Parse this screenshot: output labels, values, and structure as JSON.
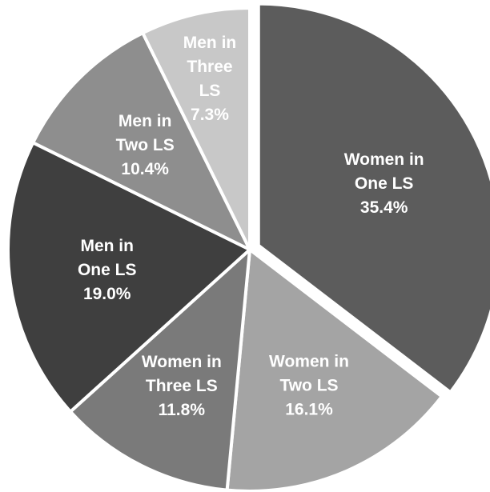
{
  "chart_data": {
    "type": "pie",
    "start_angle_deg": 0,
    "direction": "clockwise",
    "slices": [
      {
        "label_lines": [
          "Women in",
          "One LS",
          "35.4%"
        ],
        "value": 35.4,
        "color": "#5c5c5c",
        "label_color": "#ffffff"
      },
      {
        "label_lines": [
          "Women in",
          "Two LS",
          "16.1%"
        ],
        "value": 16.1,
        "color": "#a4a4a4",
        "label_color": "#000000"
      },
      {
        "label_lines": [
          "Women in",
          "Three LS",
          "11.8%"
        ],
        "value": 11.8,
        "color": "#7a7a7a",
        "label_color": "#ffffff"
      },
      {
        "label_lines": [
          "Men in",
          "One LS",
          "19.0%"
        ],
        "value": 19.0,
        "color": "#3f3f3f",
        "label_color": "#ffffff"
      },
      {
        "label_lines": [
          "Men in",
          "Two LS",
          "10.4%"
        ],
        "value": 10.4,
        "color": "#8e8e8e",
        "label_color": "#ffffff"
      },
      {
        "label_lines": [
          "Men in",
          "Three",
          "LS",
          "7.3%"
        ],
        "value": 7.3,
        "color": "#c8c8c8",
        "label_color": "#000000"
      }
    ]
  }
}
